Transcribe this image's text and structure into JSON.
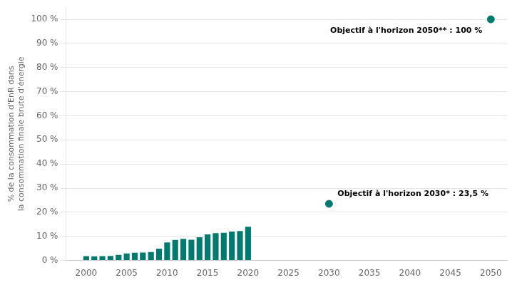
{
  "chart_data": {
    "type": "bar",
    "ylabel": "% de la consommation d'EnR dans\nla consommation finale brute d'énergie",
    "series": [
      {
        "type": "bar",
        "color": "#007A6E",
        "x": [
          2000,
          2001,
          2002,
          2003,
          2004,
          2005,
          2006,
          2007,
          2008,
          2009,
          2010,
          2011,
          2012,
          2013,
          2014,
          2015,
          2016,
          2017,
          2018,
          2019,
          2020
        ],
        "values": [
          1.8,
          1.7,
          1.8,
          1.9,
          2.3,
          2.9,
          3.2,
          3.3,
          3.5,
          4.9,
          7.5,
          8.5,
          9.0,
          8.6,
          9.6,
          10.8,
          11.3,
          11.5,
          12.0,
          12.2,
          14.0
        ]
      },
      {
        "type": "scatter",
        "color": "#007A6E",
        "marker": "circle",
        "x": [
          2030,
          2050
        ],
        "values": [
          23.5,
          100
        ]
      }
    ],
    "annotations": [
      {
        "text": "Objectif à l'horizon 2030* : 23,5 %",
        "x": 2030,
        "y": 23.5
      },
      {
        "text": "Objectif à l'horizon 2050** : 100 %",
        "x": 2050,
        "y": 100
      }
    ],
    "xlim": [
      1997.5,
      2052
    ],
    "xticks": [
      2000,
      2005,
      2010,
      2015,
      2020,
      2025,
      2030,
      2035,
      2040,
      2045,
      2050
    ],
    "ylim": [
      0,
      105
    ],
    "yticks": [
      {
        "value": 0,
        "label": "0 %"
      },
      {
        "value": 10,
        "label": "10 %"
      },
      {
        "value": 20,
        "label": "20 %"
      },
      {
        "value": 30,
        "label": "30 %"
      },
      {
        "value": 40,
        "label": "40 %"
      },
      {
        "value": 50,
        "label": "50 %"
      },
      {
        "value": 60,
        "label": "60 %"
      },
      {
        "value": 70,
        "label": "70 %"
      },
      {
        "value": 80,
        "label": "80 %"
      },
      {
        "value": 90,
        "label": "90 %"
      },
      {
        "value": 100,
        "label": "100 %"
      }
    ],
    "grid": "y"
  }
}
